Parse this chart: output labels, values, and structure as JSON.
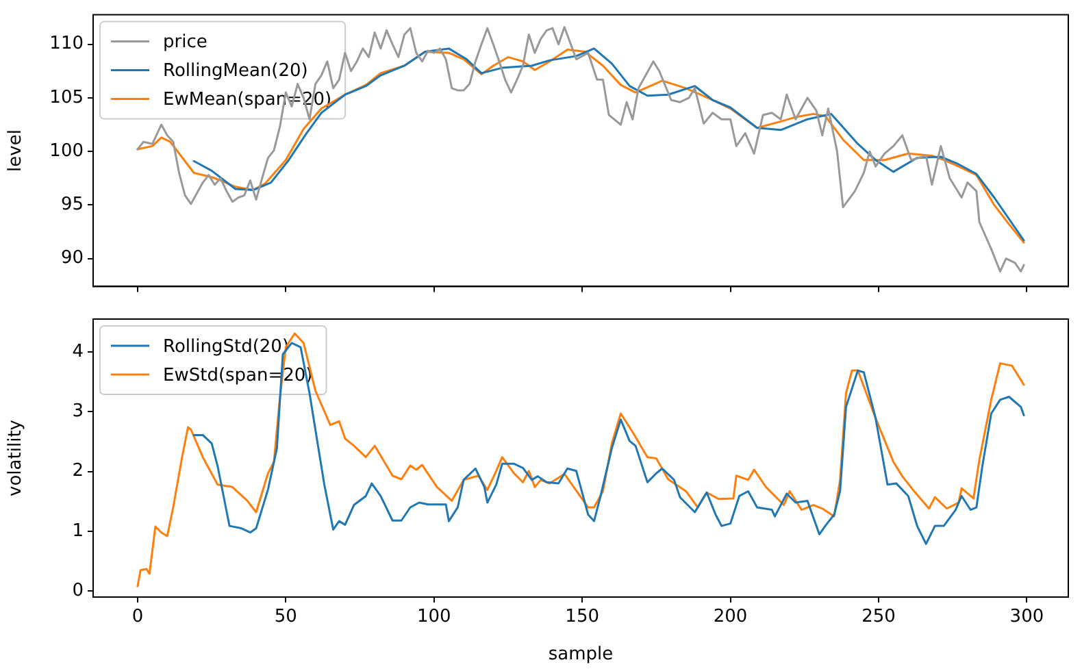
{
  "chart_data": [
    {
      "type": "line",
      "ylabel": "level",
      "xlim": [
        -15,
        314
      ],
      "ylim": [
        87.4,
        112.75
      ],
      "xticks": [
        0,
        50,
        100,
        150,
        200,
        250,
        300
      ],
      "yticks": [
        90,
        95,
        100,
        105,
        110
      ],
      "tick_labels": "y",
      "legend": "top left",
      "marker": "none",
      "line_style": "solid",
      "series": [
        {
          "name": "price",
          "color": "#999999",
          "x": [
            0,
            2,
            5,
            8,
            10,
            12,
            14,
            16,
            18,
            20,
            22,
            24,
            26,
            28,
            30,
            32,
            34,
            36,
            38,
            40,
            42,
            44,
            46,
            48,
            50,
            52,
            54,
            56,
            58,
            60,
            62,
            64,
            66,
            68,
            70,
            72,
            74,
            76,
            78,
            80,
            82,
            84,
            86,
            88,
            90,
            92,
            94,
            96,
            98,
            100,
            102,
            104,
            106,
            108,
            110,
            112,
            114,
            116,
            118,
            120,
            122,
            124,
            126,
            128,
            130,
            132,
            134,
            136,
            138,
            140,
            142,
            144,
            148,
            152,
            155,
            157,
            159,
            163,
            165,
            167,
            169,
            174,
            176,
            180,
            183,
            186,
            188,
            191,
            194,
            197,
            200,
            202,
            205,
            208,
            211,
            214,
            217,
            219,
            222,
            226,
            229,
            231,
            233,
            236,
            238,
            242,
            245,
            247,
            249,
            252,
            255,
            258,
            261,
            266,
            268,
            271,
            274,
            278,
            280,
            283,
            284,
            288,
            291,
            293,
            296,
            298,
            299
          ],
          "values": [
            100.2,
            100.9,
            100.7,
            102.5,
            101.5,
            100.9,
            98.0,
            95.9,
            95.1,
            96.1,
            97.1,
            97.8,
            96.9,
            97.5,
            96.3,
            95.3,
            95.7,
            95.9,
            97.3,
            95.5,
            97.5,
            99.4,
            100.1,
            102.3,
            105.5,
            104.2,
            106.3,
            105.0,
            103.0,
            106.3,
            107.1,
            108.4,
            105.9,
            106.7,
            109.2,
            107.5,
            108.4,
            109.6,
            108.8,
            111.1,
            109.6,
            111.3,
            110.0,
            108.8,
            110.9,
            111.5,
            109.2,
            108.4,
            109.4,
            109.2,
            109.6,
            108.6,
            105.9,
            105.7,
            105.7,
            106.3,
            108.4,
            110.0,
            111.5,
            110.0,
            108.4,
            106.7,
            105.5,
            106.7,
            108.0,
            110.9,
            109.2,
            110.5,
            111.3,
            111.5,
            110.0,
            111.6,
            108.6,
            109.2,
            106.7,
            106.7,
            103.4,
            102.5,
            104.6,
            103.0,
            105.9,
            108.4,
            107.5,
            104.8,
            104.6,
            105.0,
            105.9,
            102.6,
            103.6,
            103.0,
            103.0,
            100.5,
            101.7,
            99.8,
            103.4,
            103.6,
            103.0,
            105.3,
            103.0,
            105.0,
            103.8,
            101.5,
            104.0,
            100.0,
            94.8,
            96.3,
            98.0,
            100.0,
            98.6,
            99.8,
            100.5,
            101.5,
            99.2,
            99.6,
            96.9,
            100.5,
            97.5,
            95.7,
            97.1,
            96.3,
            93.4,
            90.9,
            88.8,
            90.0,
            89.6,
            88.8,
            89.4
          ]
        },
        {
          "name": "RollingMean(20)",
          "color": "#1f77b4",
          "x": [
            19,
            25,
            33,
            39,
            45,
            51,
            57,
            62,
            70,
            77,
            82,
            90,
            97,
            105,
            111,
            116,
            123,
            133,
            139,
            148,
            154,
            160,
            166,
            172,
            179,
            188,
            194,
            200,
            209,
            217,
            226,
            234,
            243,
            249,
            255,
            263,
            271,
            277,
            283,
            289,
            299
          ],
          "values": [
            99.1,
            98.2,
            96.5,
            96.4,
            97.1,
            99.2,
            101.7,
            103.6,
            105.3,
            106.1,
            107.1,
            108.0,
            109.3,
            109.6,
            108.6,
            107.3,
            107.8,
            108.0,
            108.5,
            108.9,
            109.6,
            108.2,
            106.1,
            105.2,
            105.3,
            106.1,
            104.8,
            104.1,
            102.2,
            102.0,
            103.0,
            103.5,
            100.7,
            99.2,
            98.1,
            99.4,
            99.5,
            98.8,
            97.9,
            95.7,
            91.7
          ]
        },
        {
          "name": "EwMean(span=20)",
          "color": "#ff7f0e",
          "x": [
            0,
            5,
            8,
            11,
            19,
            25,
            28,
            33,
            39,
            43,
            50,
            56,
            62,
            70,
            77,
            82,
            90,
            97,
            105,
            110,
            116,
            120,
            125,
            130,
            134,
            139,
            145,
            151,
            157,
            163,
            168,
            177,
            185,
            194,
            200,
            209,
            217,
            222,
            228,
            232,
            238,
            245,
            252,
            260,
            268,
            272,
            277,
            283,
            289,
            294,
            299
          ],
          "values": [
            100.2,
            100.5,
            101.3,
            100.9,
            98.0,
            97.6,
            97.3,
            96.7,
            96.4,
            97.0,
            99.2,
            102.1,
            104.0,
            105.3,
            106.2,
            107.3,
            108.0,
            109.3,
            109.2,
            108.6,
            107.2,
            108.0,
            108.8,
            108.4,
            107.6,
            108.4,
            109.5,
            109.3,
            108.0,
            106.2,
            105.5,
            106.6,
            105.9,
            104.8,
            104.0,
            102.2,
            102.8,
            103.2,
            103.5,
            103.3,
            101.1,
            99.2,
            99.2,
            99.8,
            99.6,
            99.2,
            98.6,
            97.8,
            95.0,
            93.2,
            91.5
          ]
        }
      ]
    },
    {
      "type": "line",
      "xlabel": "sample",
      "ylabel": "volatility",
      "xlim": [
        -15,
        314
      ],
      "ylim": [
        -0.1,
        4.55
      ],
      "xticks": [
        0,
        50,
        100,
        150,
        200,
        250,
        300
      ],
      "yticks": [
        0,
        1,
        2,
        3,
        4
      ],
      "legend": "top left",
      "marker": "none",
      "line_style": "solid",
      "series": [
        {
          "name": "RollingStd(20)",
          "color": "#1f77b4",
          "x": [
            19,
            22,
            25,
            27,
            31,
            35,
            38,
            40,
            44,
            47,
            49,
            52,
            55,
            58,
            61,
            63,
            66,
            68,
            70,
            73,
            77,
            79,
            82,
            86,
            89,
            92,
            95,
            98,
            104,
            105,
            108,
            110,
            114,
            117,
            118,
            121,
            123,
            127,
            130,
            133,
            135,
            138,
            142,
            145,
            148,
            152,
            154,
            156,
            160,
            163,
            166,
            168,
            172,
            175,
            177,
            181,
            183,
            188,
            192,
            195,
            197,
            200,
            203,
            206,
            209,
            214,
            215,
            219,
            222,
            226,
            230,
            232,
            235,
            237,
            239,
            243,
            245,
            249,
            253,
            256,
            260,
            263,
            266,
            269,
            272,
            276,
            278,
            281,
            283,
            285,
            288,
            291,
            294,
            298,
            299
          ],
          "values": [
            2.61,
            2.61,
            2.47,
            2.09,
            1.09,
            1.05,
            0.98,
            1.05,
            1.7,
            2.39,
            3.96,
            4.15,
            4.08,
            3.31,
            2.39,
            1.78,
            1.03,
            1.17,
            1.11,
            1.44,
            1.59,
            1.8,
            1.59,
            1.18,
            1.18,
            1.4,
            1.48,
            1.45,
            1.45,
            1.17,
            1.4,
            1.86,
            2.05,
            1.74,
            1.48,
            1.78,
            2.13,
            2.13,
            2.06,
            1.86,
            1.92,
            1.82,
            1.8,
            2.05,
            2.01,
            1.28,
            1.17,
            1.55,
            2.39,
            2.87,
            2.51,
            2.43,
            1.82,
            1.97,
            2.05,
            1.86,
            1.57,
            1.32,
            1.65,
            1.28,
            1.09,
            1.13,
            1.59,
            1.67,
            1.4,
            1.36,
            1.25,
            1.63,
            1.48,
            1.51,
            0.95,
            1.09,
            1.28,
            1.67,
            3.08,
            3.69,
            3.66,
            2.89,
            1.78,
            1.8,
            1.59,
            1.09,
            0.79,
            1.09,
            1.09,
            1.36,
            1.59,
            1.36,
            1.4,
            2.09,
            2.97,
            3.2,
            3.25,
            3.08,
            2.94
          ]
        },
        {
          "name": "EwStd(span=20)",
          "color": "#ff7f0e",
          "x": [
            0,
            1,
            3,
            4,
            6,
            8,
            10,
            12,
            15,
            17,
            18,
            22,
            27,
            32,
            37,
            40,
            44,
            46,
            48,
            50,
            53,
            56,
            60,
            65,
            68,
            70,
            73,
            77,
            80,
            86,
            89,
            92,
            94,
            96,
            101,
            106,
            110,
            115,
            118,
            121,
            123,
            127,
            130,
            132,
            134,
            136,
            139,
            144,
            152,
            154,
            157,
            160,
            163,
            167,
            172,
            175,
            179,
            185,
            189,
            192,
            196,
            201,
            202,
            206,
            208,
            212,
            218,
            220,
            224,
            228,
            231,
            235,
            237,
            239,
            241,
            243,
            249,
            255,
            258,
            262,
            267,
            269,
            273,
            277,
            278,
            282,
            284,
            288,
            291,
            295,
            299
          ],
          "values": [
            0.08,
            0.35,
            0.37,
            0.29,
            1.08,
            0.98,
            0.92,
            1.4,
            2.24,
            2.74,
            2.7,
            2.24,
            1.78,
            1.74,
            1.51,
            1.32,
            1.97,
            2.16,
            3.23,
            4.08,
            4.31,
            4.15,
            3.35,
            2.78,
            2.84,
            2.55,
            2.43,
            2.24,
            2.43,
            1.93,
            1.87,
            2.1,
            2.03,
            2.11,
            1.74,
            1.51,
            1.86,
            1.93,
            1.69,
            2.01,
            2.24,
            1.97,
            1.82,
            2.01,
            1.74,
            1.86,
            1.8,
            1.96,
            1.4,
            1.4,
            1.67,
            2.47,
            2.97,
            2.66,
            2.24,
            2.22,
            1.87,
            1.67,
            1.4,
            1.65,
            1.54,
            1.55,
            1.93,
            1.86,
            2.03,
            1.74,
            1.44,
            1.67,
            1.36,
            1.44,
            1.38,
            1.25,
            1.86,
            3.31,
            3.69,
            3.69,
            2.89,
            2.16,
            1.92,
            1.67,
            1.38,
            1.57,
            1.38,
            1.48,
            1.72,
            1.55,
            2.2,
            3.2,
            3.81,
            3.77,
            3.45
          ]
        }
      ]
    }
  ]
}
